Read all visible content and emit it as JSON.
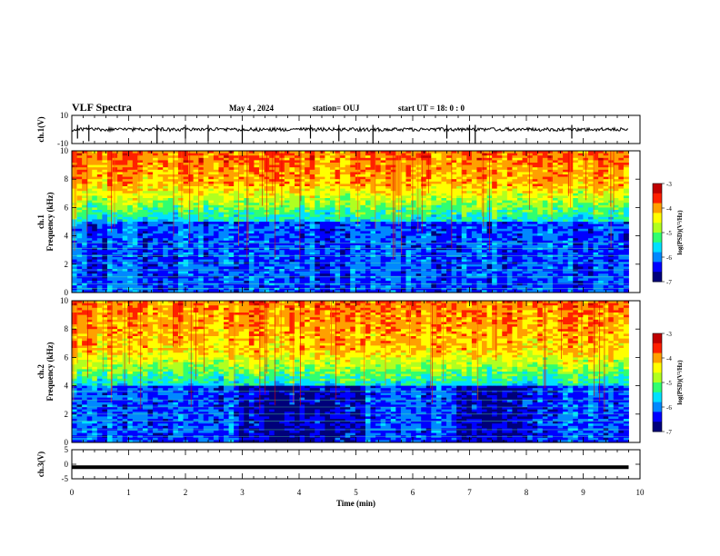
{
  "header": {
    "title": "VLF Spectra",
    "date": "May 4 , 2024",
    "station": "station= OUJ",
    "start_ut": "start UT =  18: 0  : 0"
  },
  "colors": {
    "colormap": [
      "#00007a",
      "#0000ff",
      "#0088ff",
      "#00e0ff",
      "#30ff70",
      "#b0ff20",
      "#ffff00",
      "#ffa000",
      "#ff2000",
      "#c00000"
    ]
  },
  "chart_data": [
    {
      "type": "line",
      "panel": "ch1-waveform",
      "ylabel": "ch.1(V)",
      "ylim": [
        -10,
        10
      ],
      "yticks": [
        "10",
        "-10"
      ],
      "baseline": 0,
      "spike_times_min": [
        0.1,
        0.3,
        1.5,
        2.0,
        2.4,
        3.0,
        4.2,
        4.7,
        5.3,
        6.6,
        7.0,
        7.1,
        8.8
      ]
    },
    {
      "type": "heatmap",
      "panel": "ch1-spectrogram",
      "ylabel": "ch.1\nFrequency (kHz)",
      "xlim": [
        0,
        10
      ],
      "ylim": [
        0,
        10
      ],
      "yticks": [
        "0",
        "2",
        "4",
        "6",
        "8",
        "10"
      ],
      "data_end_min": 9.8,
      "colorbar": {
        "label": "log(PSD)(V²/Hz)",
        "range": [
          -7,
          -3
        ],
        "ticks": [
          "-3",
          "-4",
          "-5",
          "-6",
          "-7"
        ]
      },
      "low_band_top_khz": 5.0
    },
    {
      "type": "heatmap",
      "panel": "ch2-spectrogram",
      "ylabel": "ch.2\nFrequency (kHz)",
      "xlim": [
        0,
        10
      ],
      "ylim": [
        0,
        10
      ],
      "yticks": [
        "0",
        "2",
        "4",
        "6",
        "8",
        "10"
      ],
      "data_end_min": 9.8,
      "colorbar": {
        "label": "log(PSD)(V²/Hz)",
        "range": [
          -7,
          -3
        ],
        "ticks": [
          "-3",
          "-4",
          "-5",
          "-6",
          "-7"
        ]
      },
      "low_band_top_khz": 4.0,
      "quiet_intervals_min": [
        [
          2.9,
          5.2
        ],
        [
          6.8,
          7.9
        ]
      ]
    },
    {
      "type": "line",
      "panel": "ch3-waveform",
      "ylabel": "ch.3(V)",
      "ylim": [
        -5,
        5
      ],
      "yticks": [
        "5",
        "0",
        "-5"
      ],
      "baseline": -1,
      "xlabel": "Time (min)",
      "xticks": [
        "0",
        "1",
        "2",
        "3",
        "4",
        "5",
        "6",
        "7",
        "8",
        "9",
        "10"
      ]
    }
  ]
}
